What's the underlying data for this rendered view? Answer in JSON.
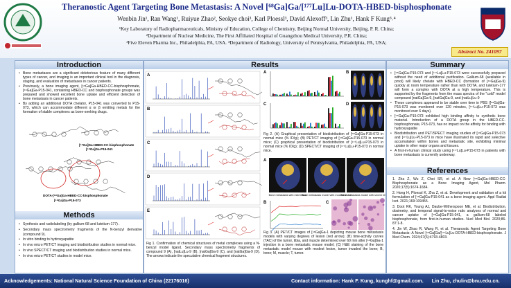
{
  "header": {
    "title": "Theranostic Agent Targeting Bone Metastasis: A Novel [⁶⁸Ga]Ga/[¹⁷⁷Lu]Lu-DOTA-HBED-bisphosphonate",
    "authors": "Wenbin Jin¹, Ran Wang¹, Ruiyue Zhao², Seokye choi³, Karl Ploessl³, David Alexoff³, Lin Zhu¹, Hank F Kung³˒⁴",
    "affiliations": [
      "¹Key Laboratory of Radiopharmaceuticals, Ministry of Education, College of Chemistry, Beijing Normal University, Beijing, P. R. China;",
      "²Department of Nuclear Medicine, The First Affiliated Hospital of Guangzhou Medical University, P.R. China;",
      "³Five Eleven Pharma Inc., Philadelphia, PA, USA. ⁴Department of Radiology, University of Pennsylvania, Philadelphia, PA, USA;"
    ],
    "abstract_no": "Abstract No. 241097"
  },
  "introduction": {
    "heading": "Introduction",
    "bullets": [
      "Bone metastases are a significant deleterious feature of many different types of cancer, and imaging is an important clinical tool in the diagnosis, staging, and evaluation of metastases in cancer patients.",
      "Previously, a bone imaging agent, [⁶⁸Ga]Ga-HBED-CC-bisphosphonate, [⁶⁸Ga]Ga-P15-041, containing HBED-CC and bisphosphonate groups was prepared and showed excellent bone uptake and efficient detection of bone metastasis in cancer patients.",
      "By adding an additional DOTA chelator, P15-041 was converted to P15-073, which can accommodate different α or β emitting metals for the formation of stable complexes as bone-seeking drugs."
    ],
    "structure_labels": [
      "[⁶⁸Ga]Ga-HBED-CC-bisphosphonate",
      "[⁶⁸Ga]Ga-P15-041",
      "DOTA-[⁶⁸Ga]Ga-HBED-CC-bisphosphonate",
      "[⁶⁸Ga]Ga-P15-073"
    ]
  },
  "methods": {
    "heading": "Methods",
    "bullets": [
      "Synthesis and radiolabeling (by gallium-68 and lutetium-177) .",
      "Secondary mass spectrometry fragments of the N-benzyl derivative (compound 9).",
      "In vitro binding to hydroxyapatite",
      "In vivo micro PET/CT imaging and biodistribution studies in normal mice.",
      "In vivo SPECT/CT imaging and biodistribution studies in normal mice.",
      "In vivo micro PET/CT studies in model mice."
    ]
  },
  "results": {
    "heading": "Results",
    "fig1": {
      "panels": [
        "A",
        "B",
        "C",
        "D",
        "E"
      ],
      "caption": "Fig 1. Confirmation of chemical structures of metal complexes using a N-benzyl model ligand. Secondary mass spectrometry fragments of compound 9 (A), [natLu]Lu-9 (B), [natGa]Ga-9 (C), and [natGa]Ga-9 (D). The arrows indicate the speculative chemical fragment structures."
    },
    "fig2": {
      "panels": [
        "A",
        "B",
        "C",
        "D"
      ],
      "caption": "Fig 2. (A) Graphical presentation of biodistribution of [⁶⁸Ga]Ga-P15-073 in normal mice (% ID/g); (B) PET/CT imaging of [⁶⁸Ga]Ga-P15-073 in normal mice; (C) graphical presentation of biodistribution of [¹⁷⁷Lu]Lu-P15-073 in normal mice (% ID/g); (D) SPECT/CT imaging of [¹⁷⁷Lu]Lu-P15-073 in normal mice."
    },
    "fig3": {
      "panels": [
        "A",
        "B",
        "C"
      ],
      "image_labels": [
        "Bone metastasis with mild lesion",
        "Bone metastasis model with modest lesion",
        "Bone metastasis model with severe lesion"
      ],
      "caption": "Fig 3. (A) PET/CT images of [⁶⁸Ga]Ga-1 depicting mouse bone metastasis models with varying degrees of lesion (red arrow); (B) time-activity curves (TAC) of the tumor, tibia, and muscle determined over 60 min after [⁶⁸Ga]Ga-1 injection in a bone metastatic mouse model; (C) H&E staining of the bone metastatic model mouse with modest lesion, tumor invaded the bone; B, bone; M, muscle; T, tumor."
    }
  },
  "summary": {
    "heading": "Summary",
    "bullets": [
      "[⁶⁸Ga]Ga-P15-073 and [¹⁷⁷Lu]Lu-P15-073 were successfully prepared without the need of additional purification. Gallium-68 (available in pmol) will likely chelate with HBED-CC (formation of [⁶⁸Ga]Ga-9) quickly at room temperature rather than with DOTA, and lutetium-177 will form a complex with DOTA at a high temperature. This is supported by the fragments from the mass spectra of the \"cold\" model compound [natGa]Ga-9, [natGa]Ga-9, and [natLu]Lu-9",
      "These complexes appeared to be stable over time in PBS ([⁶⁸Ga]Ga-P15-073 was monitored over 120 minutes, [¹⁷⁷Lu]Lu-P15-073 was monitored over 6 days).",
      "[⁶⁸Ga]Ga-P15-073 exhibited high binding affinity to synthetic bone material. Introduction of a DOTA group in the HBED-CC-bisphosphonate, P15-073, has no impact on the affinity for binding with hydroxyapatite",
      "Biodistribution and PET/SPECT imaging studies of [⁶⁸Ga]Ga-P15-073 and [¹⁷⁷Lu]Lu-P15-073 in mice have illustrated its rapid and selective accumulation within bones and metastatic site, exhibiting minimal uptake in other major organs and tissues.",
      "A first-in-human clinical study using [¹⁷⁷Lu]Lu-P15-073 in patients with bone metastasis is currently underway."
    ]
  },
  "references": {
    "heading": "References",
    "items": [
      "1. Zha Z, Wu Z, Choi SR, et al. A New [⁶⁸Ga]Ga-HBED-CC-Bisphosphonate as a Bone Imaging Agent, Mol Pharm. 2020;17(5):1674-1684.",
      "2. Hong H, Ploessl K, Zha Z, et al. Development and validation of a kit formulation of [⁶⁸Ga]Ga-P15-041 as a bone imaging agent. Appl Radiat Isot. 2021;169:109455.",
      "3. Doot RK, Young AJ, Daube-Witherspoon ME, et al. Biodistribution, dosimetry, and temporal signal-to-noise ratio analyses of normal and cancer uptake of [⁶⁸Ga]Ga-P15-041, a gallium-68 labeled bisphosphonate, from first-in-human studies. Nucl Med Biol. 2020;86-87:1-8.",
      "4. Jin W, Zhao R, Wang R, et al. Theranostic Agent Targeting Bone Metastasis: A Novel [⁶⁸Ga]Ga/[¹⁷⁷Lu]Lu-DOTA-HBED-bisphosphonate. J Med Chem. 2024;67(6):4793-4803."
    ]
  },
  "footer": {
    "acknowledgements": "Acknowledgements: National Natural Science Foundation of China (22176016)",
    "contact": "Contact information: Hank F. Kung, kunghf@gmail.com.      Lin Zhu, zhulin@bnu.edu.cn."
  }
}
